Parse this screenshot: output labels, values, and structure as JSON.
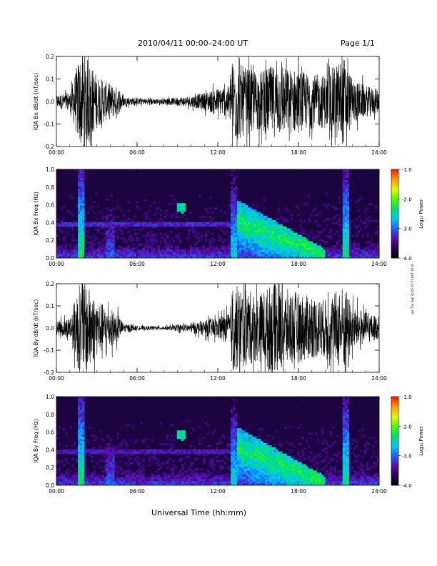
{
  "header": {
    "date_range": "2010/04/11   00:00–24:00 UT",
    "page": "Page 1/1"
  },
  "footer": {
    "xaxis_title": "Universal Time (hh:mm)",
    "stamp": "red Thu Sep 30 05:37:51 EDT 2010"
  },
  "colors": {
    "waveform": "#000000",
    "spectro_background": "#1c0440",
    "colormap": [
      "#000000",
      "#2a0060",
      "#5a10b0",
      "#2060ff",
      "#00c8ff",
      "#00e070",
      "#40ff00",
      "#e0ff00",
      "#ffa000",
      "#ff2000"
    ]
  },
  "chart_data": [
    {
      "type": "line",
      "ylabel": "IQA Bx dB/dt (nT/sec)",
      "ylim": [
        -0.2,
        0.2
      ],
      "yticks": [
        "-0.2",
        "-0.1",
        "0.0",
        "0.1",
        "0.2"
      ],
      "xlim_hours": [
        0,
        24
      ],
      "xticks": [
        "00:00",
        "06:00",
        "12:00",
        "18:00",
        "24:00"
      ],
      "envelope": {
        "x_hours": [
          0,
          1,
          1.7,
          2.2,
          3.0,
          3.6,
          4.0,
          4.6,
          5.0,
          6.0,
          8.0,
          10.0,
          11.0,
          12.0,
          12.9,
          13.1,
          14.0,
          15.0,
          16.0,
          17.0,
          18.0,
          19.0,
          20.0,
          21.0,
          21.4,
          22.0,
          23.0,
          24.0
        ],
        "amplitude": [
          0.03,
          0.04,
          0.2,
          0.2,
          0.12,
          0.09,
          0.08,
          0.06,
          0.02,
          0.015,
          0.012,
          0.025,
          0.04,
          0.06,
          0.07,
          0.2,
          0.15,
          0.13,
          0.16,
          0.15,
          0.14,
          0.12,
          0.12,
          0.18,
          0.2,
          0.1,
          0.07,
          0.05
        ]
      }
    },
    {
      "type": "heatmap",
      "ylabel": "IQA Bx Freq (Hz)",
      "ylim": [
        0,
        1.0
      ],
      "yticks": [
        "0.0",
        "0.2",
        "0.4",
        "0.6",
        "0.8",
        "1.0"
      ],
      "xlim_hours": [
        0,
        24
      ],
      "xticks": [
        "00:00",
        "06:00",
        "12:00",
        "18:00",
        "24:00"
      ],
      "colorbar": {
        "label": "Log₁₀ Power",
        "range": [
          -4.0,
          -1.0
        ],
        "ticks": [
          "-1.0",
          "-2.0",
          "-3.0",
          "-4.0"
        ]
      },
      "features": [
        {
          "kind": "band",
          "freq": [
            0.36,
            0.4
          ],
          "hours": [
            0,
            13
          ],
          "log_power": -3.1
        },
        {
          "kind": "blob",
          "hour": 9.3,
          "freq": 0.57,
          "log_power": -2.2
        },
        {
          "kind": "burst",
          "hour": 1.9,
          "log_power": -2.0
        },
        {
          "kind": "burst",
          "hour": 4.0,
          "log_power": -2.8
        },
        {
          "kind": "burst",
          "hour": 13.2,
          "log_power": -2.3
        },
        {
          "kind": "burst",
          "hour": 21.5,
          "log_power": -2.1
        },
        {
          "kind": "falling_tone",
          "hours": [
            13.5,
            20.0
          ],
          "freq": [
            0.6,
            0.05
          ],
          "log_power": -2.0
        }
      ]
    },
    {
      "type": "line",
      "ylabel": "IQA By dB/dt (nT/sec)",
      "ylim": [
        -0.2,
        0.2
      ],
      "yticks": [
        "-0.2",
        "-0.1",
        "0.0",
        "0.1",
        "0.2"
      ],
      "xlim_hours": [
        0,
        24
      ],
      "xticks": [
        "00:00",
        "06:00",
        "12:00",
        "18:00",
        "24:00"
      ],
      "envelope": {
        "x_hours": [
          0,
          1,
          1.7,
          2.2,
          3.0,
          3.6,
          4.0,
          4.6,
          5.0,
          6.0,
          8.0,
          10.0,
          11.0,
          12.0,
          12.9,
          13.1,
          14.0,
          15.0,
          16.0,
          17.0,
          18.0,
          19.0,
          20.0,
          21.0,
          21.4,
          22.0,
          23.0,
          24.0
        ],
        "amplitude": [
          0.03,
          0.05,
          0.2,
          0.2,
          0.13,
          0.1,
          0.09,
          0.06,
          0.02,
          0.01,
          0.008,
          0.02,
          0.035,
          0.05,
          0.07,
          0.2,
          0.18,
          0.15,
          0.2,
          0.18,
          0.16,
          0.14,
          0.13,
          0.18,
          0.2,
          0.1,
          0.07,
          0.05
        ]
      }
    },
    {
      "type": "heatmap",
      "ylabel": "IQA By Freq (Hz)",
      "ylim": [
        0,
        1.0
      ],
      "yticks": [
        "0.0",
        "0.2",
        "0.4",
        "0.6",
        "0.8",
        "1.0"
      ],
      "xlim_hours": [
        0,
        24
      ],
      "xticks": [
        "00:00",
        "06:00",
        "12:00",
        "18:00",
        "24:00"
      ],
      "colorbar": {
        "label": "Log₁₀ Power",
        "range": [
          -4.0,
          -1.0
        ],
        "ticks": [
          "-1.0",
          "-2.0",
          "-3.0",
          "-4.0"
        ]
      },
      "features": [
        {
          "kind": "band",
          "freq": [
            0.36,
            0.4
          ],
          "hours": [
            0,
            13
          ],
          "log_power": -3.2
        },
        {
          "kind": "blob",
          "hour": 9.3,
          "freq": 0.57,
          "log_power": -2.2
        },
        {
          "kind": "burst",
          "hour": 1.9,
          "log_power": -2.0
        },
        {
          "kind": "burst",
          "hour": 4.0,
          "log_power": -2.8
        },
        {
          "kind": "burst",
          "hour": 13.2,
          "log_power": -2.3
        },
        {
          "kind": "burst",
          "hour": 21.5,
          "log_power": -2.1
        },
        {
          "kind": "falling_tone",
          "hours": [
            13.5,
            20.0
          ],
          "freq": [
            0.6,
            0.05
          ],
          "log_power": -2.0
        }
      ]
    }
  ]
}
